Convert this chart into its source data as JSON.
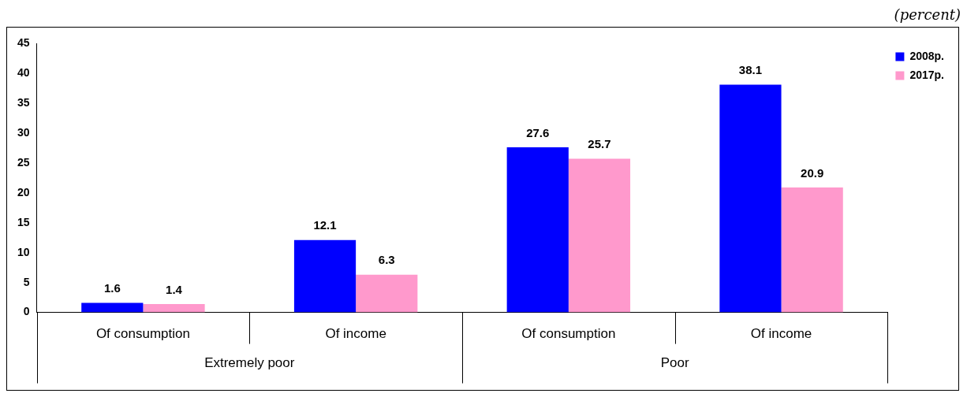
{
  "chart_data": {
    "type": "bar",
    "categories": [
      "Of consumption",
      "Of income",
      "Of consumption",
      "Of income"
    ],
    "series": [
      {
        "name": "2008p.",
        "color": "#0000ff",
        "values": [
          1.6,
          12.1,
          27.6,
          38.1
        ]
      },
      {
        "name": "2017p.",
        "color": "#ff99cc",
        "values": [
          1.4,
          6.3,
          25.7,
          20.9
        ]
      }
    ],
    "ylim": [
      0,
      45
    ],
    "yticks": [
      0,
      5,
      10,
      15,
      20,
      25,
      30,
      35,
      40,
      45
    ],
    "grid": false,
    "legend": "top right",
    "data_labels": true,
    "annotations": [
      "(percent)",
      "Extremely poor",
      "Poor"
    ]
  }
}
